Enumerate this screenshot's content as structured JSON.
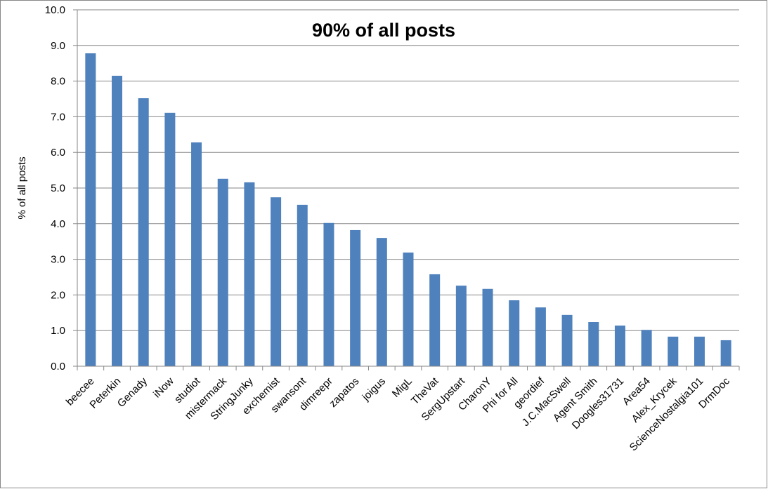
{
  "chart_data": {
    "type": "bar",
    "title": "90% of all posts",
    "y_label": "% of all posts",
    "categories": [
      "beecee",
      "Peterkin",
      "Genady",
      "iNow",
      "studiot",
      "mistermack",
      "StringJunky",
      "exchemist",
      "swansont",
      "dimreepr",
      "zapatos",
      "joigus",
      "MigL",
      "TheVat",
      "SergUpstart",
      "CharonY",
      "Phi for All",
      "geordief",
      "J.C.MacSwell",
      "Agent Smith",
      "Doogles31731",
      "Area54",
      "Alex_Krycek",
      "ScienceNostalgia101",
      "DrmDoc"
    ],
    "values": [
      8.78,
      8.15,
      7.52,
      7.11,
      6.28,
      5.26,
      5.16,
      4.74,
      4.53,
      4.02,
      3.82,
      3.6,
      3.19,
      2.58,
      2.26,
      2.17,
      1.85,
      1.65,
      1.44,
      1.24,
      1.14,
      1.02,
      0.83,
      0.83,
      0.73
    ],
    "color": "#4f81bd",
    "ylim": [
      0,
      10
    ],
    "yticks": [
      {
        "value": 0,
        "label": "0.0"
      },
      {
        "value": 1,
        "label": "1.0"
      },
      {
        "value": 2,
        "label": "2.0"
      },
      {
        "value": 3,
        "label": "3.0"
      },
      {
        "value": 4,
        "label": "4.0"
      },
      {
        "value": 5,
        "label": "5.0"
      },
      {
        "value": 6,
        "label": "6.0"
      },
      {
        "value": 7,
        "label": "7.0"
      },
      {
        "value": 8,
        "label": "8.0"
      },
      {
        "value": 9,
        "label": "9.0"
      },
      {
        "value": 10,
        "label": "10.0"
      }
    ],
    "grid": true
  }
}
